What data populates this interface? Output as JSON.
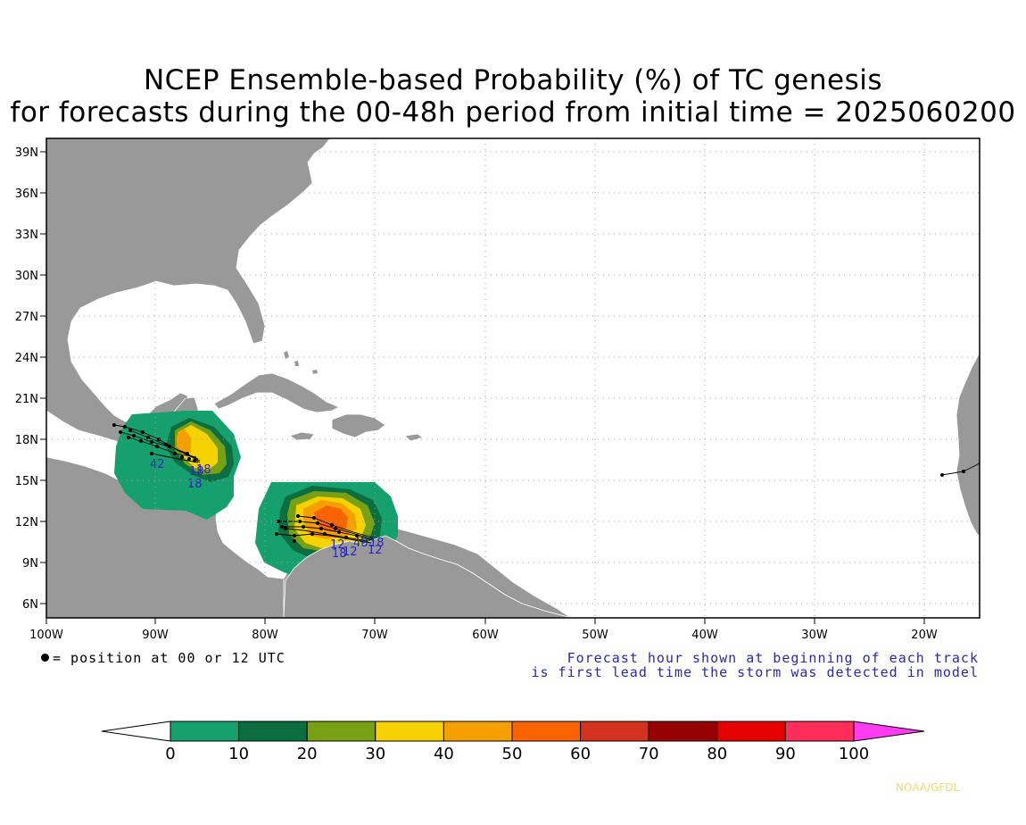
{
  "title": {
    "line1": "NCEP Ensemble-based Probability (%) of TC genesis",
    "line2": "for forecasts during the 00-48h period from initial time = 2025060200"
  },
  "map": {
    "lat_labels": [
      "39N",
      "36N",
      "33N",
      "30N",
      "27N",
      "24N",
      "21N",
      "18N",
      "15N",
      "12N",
      "9N",
      "6N"
    ],
    "lon_labels": [
      "100W",
      "90W",
      "80W",
      "70W",
      "60W",
      "50W",
      "40W",
      "30W",
      "20W"
    ],
    "land_color": "#999999",
    "ocean_color": "#ffffff",
    "forecast_hour_labels": [
      "42",
      "18",
      "18",
      "18",
      "12",
      "18",
      "48",
      "12",
      "18",
      "12"
    ]
  },
  "legend": {
    "position_text": "= position at 00 or 12 UTC",
    "note_line1": "Forecast hour shown at beginning of each track",
    "note_line2": "is first lead time the storm was detected in model"
  },
  "colorbar": {
    "ticks": [
      "0",
      "10",
      "20",
      "30",
      "40",
      "50",
      "60",
      "70",
      "80",
      "90",
      "100"
    ],
    "colors": [
      "#16a06e",
      "#0c6e40",
      "#78a014",
      "#f5d200",
      "#f5a000",
      "#fa6400",
      "#d2321e",
      "#960000",
      "#e60000",
      "#ff2d5a"
    ],
    "under_color": "#ffffff",
    "over_color": "#ff3cf0"
  },
  "credit": "NOAA/GFDL"
}
